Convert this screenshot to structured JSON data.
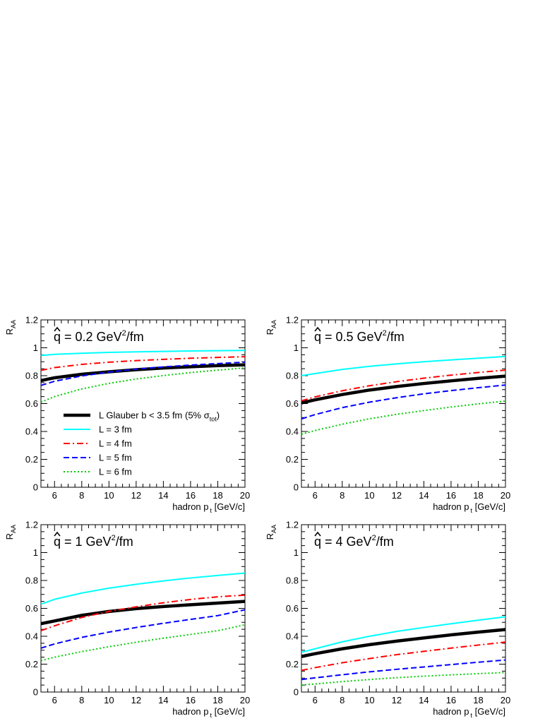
{
  "chart_data": [
    {
      "type": "line",
      "annotation": {
        "prefix": "q",
        "main": " = 0.2 GeV",
        "sup": "2",
        "suffix": "/fm"
      },
      "xlabel": {
        "main": "hadron p",
        "sub": "t",
        "suffix": " [GeV/c]"
      },
      "ylabel": {
        "main": "R",
        "sub": "AA"
      },
      "xlim": [
        5,
        20
      ],
      "ylim": [
        0,
        1.2
      ],
      "xticks": [
        6,
        8,
        10,
        12,
        14,
        16,
        18,
        20
      ],
      "yticks": [
        0,
        0.2,
        0.4,
        0.6,
        0.8,
        1,
        1.2
      ],
      "grid": false,
      "legend": {
        "placement": "middle-left",
        "entries": [
          {
            "series": 0,
            "main": "L Glauber b < 3.5 fm (5% σ",
            "sub": "tot",
            "suffix": ")"
          },
          {
            "series": 1,
            "main": "L = 3 fm"
          },
          {
            "series": 2,
            "main": "L = 4 fm"
          },
          {
            "series": 3,
            "main": "L = 5 fm"
          },
          {
            "series": 4,
            "main": "L = 6 fm"
          }
        ]
      },
      "x": [
        5,
        6,
        8,
        10,
        12,
        14,
        16,
        18,
        20
      ],
      "series": [
        {
          "name": "L Glauber b < 3.5 fm (5% σtot)",
          "color": "#000000",
          "style": "solid",
          "width": 4.5,
          "values": [
            0.765,
            0.785,
            0.81,
            0.828,
            0.843,
            0.855,
            0.864,
            0.872,
            0.878
          ]
        },
        {
          "name": "L = 3 fm",
          "color": "#00ffff",
          "style": "solid",
          "width": 2,
          "values": [
            0.945,
            0.953,
            0.961,
            0.967,
            0.971,
            0.974,
            0.977,
            0.979,
            0.981
          ]
        },
        {
          "name": "L = 4 fm",
          "color": "#ff0000",
          "style": "dashdot",
          "width": 2,
          "values": [
            0.838,
            0.858,
            0.881,
            0.897,
            0.908,
            0.917,
            0.925,
            0.931,
            0.936
          ]
        },
        {
          "name": "L = 5 fm",
          "color": "#0000ff",
          "style": "dashed",
          "width": 2,
          "values": [
            0.73,
            0.76,
            0.798,
            0.826,
            0.847,
            0.863,
            0.876,
            0.887,
            0.897
          ]
        },
        {
          "name": "L = 6 fm",
          "color": "#00cc00",
          "style": "dotted",
          "width": 2,
          "values": [
            0.61,
            0.65,
            0.705,
            0.745,
            0.776,
            0.801,
            0.822,
            0.84,
            0.856
          ]
        }
      ]
    },
    {
      "type": "line",
      "annotation": {
        "prefix": "q",
        "main": " = 0.5 GeV",
        "sup": "2",
        "suffix": "/fm"
      },
      "xlabel": {
        "main": "hadron p",
        "sub": "t",
        "suffix": " [GeV/c]"
      },
      "ylabel": {
        "main": "R",
        "sub": "AA"
      },
      "xlim": [
        5,
        20
      ],
      "ylim": [
        0,
        1.2
      ],
      "xticks": [
        6,
        8,
        10,
        12,
        14,
        16,
        18,
        20
      ],
      "yticks": [
        0,
        0.2,
        0.4,
        0.6,
        0.8,
        1,
        1.2
      ],
      "grid": false,
      "x": [
        5,
        6,
        8,
        10,
        12,
        14,
        16,
        18,
        20
      ],
      "series": [
        {
          "name": "L Glauber b < 3.5 fm (5% σtot)",
          "color": "#000000",
          "style": "solid",
          "width": 4.5,
          "values": [
            0.605,
            0.627,
            0.665,
            0.697,
            0.722,
            0.744,
            0.763,
            0.781,
            0.797
          ]
        },
        {
          "name": "L = 3 fm",
          "color": "#00ffff",
          "style": "solid",
          "width": 2,
          "values": [
            0.8,
            0.815,
            0.845,
            0.867,
            0.885,
            0.9,
            0.913,
            0.925,
            0.938
          ]
        },
        {
          "name": "L = 4 fm",
          "color": "#ff0000",
          "style": "dashdot",
          "width": 2,
          "values": [
            0.62,
            0.648,
            0.692,
            0.728,
            0.757,
            0.782,
            0.804,
            0.823,
            0.84
          ]
        },
        {
          "name": "L = 5 fm",
          "color": "#0000ff",
          "style": "dashed",
          "width": 2,
          "values": [
            0.49,
            0.521,
            0.571,
            0.61,
            0.642,
            0.67,
            0.693,
            0.714,
            0.733
          ]
        },
        {
          "name": "L = 6 fm",
          "color": "#00cc00",
          "style": "dotted",
          "width": 2,
          "values": [
            0.38,
            0.407,
            0.452,
            0.491,
            0.523,
            0.55,
            0.575,
            0.598,
            0.618
          ]
        }
      ]
    },
    {
      "type": "line",
      "annotation": {
        "prefix": "q",
        "main": " = 1 GeV",
        "sup": "2",
        "suffix": "/fm"
      },
      "xlabel": {
        "main": "hadron p",
        "sub": "t",
        "suffix": " [GeV/c]"
      },
      "ylabel": {
        "main": "R",
        "sub": "AA"
      },
      "xlim": [
        5,
        20
      ],
      "ylim": [
        0,
        1.2
      ],
      "xticks": [
        6,
        8,
        10,
        12,
        14,
        16,
        18,
        20
      ],
      "yticks": [
        0,
        0.2,
        0.4,
        0.6,
        0.8,
        1,
        1.2
      ],
      "grid": false,
      "x": [
        5,
        6,
        8,
        10,
        12,
        14,
        16,
        18,
        20
      ],
      "series": [
        {
          "name": "L Glauber b < 3.5 fm (5% σtot)",
          "color": "#000000",
          "style": "solid",
          "width": 4.5,
          "values": [
            0.49,
            0.51,
            0.55,
            0.578,
            0.598,
            0.613,
            0.626,
            0.638,
            0.65
          ]
        },
        {
          "name": "L = 3 fm",
          "color": "#00ffff",
          "style": "solid",
          "width": 2,
          "values": [
            0.63,
            0.665,
            0.71,
            0.745,
            0.773,
            0.797,
            0.818,
            0.836,
            0.853
          ]
        },
        {
          "name": "L = 4 fm",
          "color": "#ff0000",
          "style": "dashdot",
          "width": 2,
          "values": [
            0.44,
            0.475,
            0.535,
            0.578,
            0.611,
            0.64,
            0.664,
            0.683,
            0.695
          ]
        },
        {
          "name": "L = 5 fm",
          "color": "#0000ff",
          "style": "dashed",
          "width": 2,
          "values": [
            0.315,
            0.345,
            0.392,
            0.43,
            0.463,
            0.493,
            0.521,
            0.548,
            0.59
          ]
        },
        {
          "name": "L = 6 fm",
          "color": "#00cc00",
          "style": "dotted",
          "width": 2,
          "values": [
            0.225,
            0.25,
            0.29,
            0.325,
            0.357,
            0.386,
            0.413,
            0.44,
            0.482
          ]
        }
      ]
    },
    {
      "type": "line",
      "annotation": {
        "prefix": "q",
        "main": " = 4 GeV",
        "sup": "2",
        "suffix": "/fm"
      },
      "xlabel": {
        "main": "hadron p",
        "sub": "t",
        "suffix": " [GeV/c]"
      },
      "ylabel": {
        "main": "R",
        "sub": "AA"
      },
      "xlim": [
        5,
        20
      ],
      "ylim": [
        0,
        1.2
      ],
      "xticks": [
        6,
        8,
        10,
        12,
        14,
        16,
        18,
        20
      ],
      "yticks": [
        0,
        0.2,
        0.4,
        0.6,
        0.8,
        1,
        1.2
      ],
      "grid": false,
      "x": [
        5,
        6,
        8,
        10,
        12,
        14,
        16,
        18,
        20
      ],
      "series": [
        {
          "name": "L Glauber b < 3.5 fm (5% σtot)",
          "color": "#000000",
          "style": "solid",
          "width": 4.5,
          "values": [
            0.255,
            0.275,
            0.31,
            0.34,
            0.365,
            0.388,
            0.41,
            0.43,
            0.448
          ]
        },
        {
          "name": "L = 3 fm",
          "color": "#00ffff",
          "style": "solid",
          "width": 2,
          "values": [
            0.285,
            0.31,
            0.36,
            0.4,
            0.435,
            0.463,
            0.49,
            0.515,
            0.54
          ]
        },
        {
          "name": "L = 4 fm",
          "color": "#ff0000",
          "style": "dashdot",
          "width": 2,
          "values": [
            0.155,
            0.175,
            0.21,
            0.24,
            0.268,
            0.292,
            0.315,
            0.337,
            0.358
          ]
        },
        {
          "name": "L = 5 fm",
          "color": "#0000ff",
          "style": "dashed",
          "width": 2,
          "values": [
            0.09,
            0.102,
            0.124,
            0.145,
            0.163,
            0.18,
            0.197,
            0.214,
            0.23
          ]
        },
        {
          "name": "L = 6 fm",
          "color": "#00cc00",
          "style": "dotted",
          "width": 2,
          "values": [
            0.05,
            0.058,
            0.075,
            0.09,
            0.103,
            0.114,
            0.123,
            0.132,
            0.14
          ]
        }
      ]
    }
  ]
}
